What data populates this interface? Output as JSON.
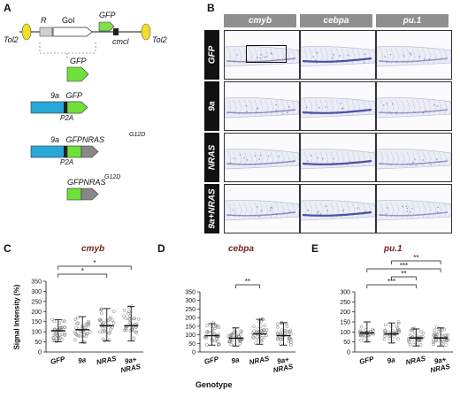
{
  "panels": {
    "a": "A",
    "b": "B",
    "c": "C",
    "d": "D",
    "e": "E"
  },
  "construct": {
    "tol2_left": "Tol2",
    "tol2_right": "Tol2",
    "r": "R",
    "goi": "GoI",
    "gfp_top": "GFP",
    "cmcl": "cmcl",
    "items": [
      {
        "top_label": "GFP",
        "sub_label": ""
      },
      {
        "top_label": "9a   GFP",
        "sub_label": "P2A"
      },
      {
        "top_label": "9a   GFPNRAS",
        "sup": "G12D",
        "sub_label": "P2A"
      },
      {
        "top_label": "GFPNRAS",
        "sup": "G12D",
        "sub_label": ""
      }
    ]
  },
  "ish": {
    "columns": [
      "cmyb",
      "cebpa",
      "pu.1"
    ],
    "rows": [
      "GFP",
      "9a",
      "NRAS",
      "9a+NRAS"
    ]
  },
  "charts_common": {
    "ylabel": "Signal Intensity (%)",
    "xlabel": "Genotype",
    "categories": [
      "GFP",
      "9a",
      "NRAS",
      "9a+\nNRAS"
    ]
  },
  "chart_data": [
    {
      "type": "scatter",
      "title": "cmyb",
      "categories": [
        "GFP",
        "9a",
        "NRAS",
        "9a+NRAS"
      ],
      "ylabel": "Signal Intensity (%)",
      "ylim": [
        0,
        350
      ],
      "yticks": [
        0,
        50,
        100,
        150,
        200,
        250,
        300,
        350
      ],
      "summary": [
        {
          "median": 105,
          "q1": 80,
          "q3": 125,
          "low": 50,
          "high": 160
        },
        {
          "median": 110,
          "q1": 75,
          "q3": 135,
          "low": 45,
          "high": 175
        },
        {
          "median": 130,
          "q1": 95,
          "q3": 165,
          "low": 55,
          "high": 215
        },
        {
          "median": 130,
          "q1": 95,
          "q3": 170,
          "low": 55,
          "high": 225
        }
      ],
      "significance": [
        {
          "from": 0,
          "to": 2,
          "label": "*"
        },
        {
          "from": 0,
          "to": 3,
          "label": "*"
        }
      ]
    },
    {
      "type": "scatter",
      "title": "cebpa",
      "categories": [
        "GFP",
        "9a",
        "NRAS",
        "9a+NRAS"
      ],
      "ylabel": "Signal Intensity (%)",
      "ylim": [
        0,
        350
      ],
      "yticks": [
        0,
        50,
        100,
        150,
        200,
        250,
        300,
        350
      ],
      "summary": [
        {
          "median": 95,
          "q1": 70,
          "q3": 120,
          "low": 40,
          "high": 165
        },
        {
          "median": 80,
          "q1": 60,
          "q3": 100,
          "low": 35,
          "high": 140
        },
        {
          "median": 105,
          "q1": 80,
          "q3": 130,
          "low": 45,
          "high": 190
        },
        {
          "median": 95,
          "q1": 70,
          "q3": 120,
          "low": 40,
          "high": 170
        }
      ],
      "significance": [
        {
          "from": 1,
          "to": 2,
          "label": "**"
        }
      ]
    },
    {
      "type": "scatter",
      "title": "pu.1",
      "categories": [
        "GFP",
        "9a",
        "NRAS",
        "9a+NRAS"
      ],
      "ylabel": "Signal Intensity (%)",
      "ylim": [
        0,
        300
      ],
      "yticks": [
        0,
        50,
        100,
        150,
        200,
        250,
        300
      ],
      "summary": [
        {
          "median": 95,
          "q1": 80,
          "q3": 115,
          "low": 50,
          "high": 150
        },
        {
          "median": 90,
          "q1": 75,
          "q3": 110,
          "low": 45,
          "high": 145
        },
        {
          "median": 70,
          "q1": 55,
          "q3": 85,
          "low": 30,
          "high": 115
        },
        {
          "median": 70,
          "q1": 55,
          "q3": 90,
          "low": 30,
          "high": 120
        }
      ],
      "significance": [
        {
          "from": 0,
          "to": 2,
          "label": "***"
        },
        {
          "from": 1,
          "to": 2,
          "label": "**"
        },
        {
          "from": 0,
          "to": 3,
          "label": "***"
        },
        {
          "from": 1,
          "to": 3,
          "label": "**"
        }
      ]
    }
  ]
}
